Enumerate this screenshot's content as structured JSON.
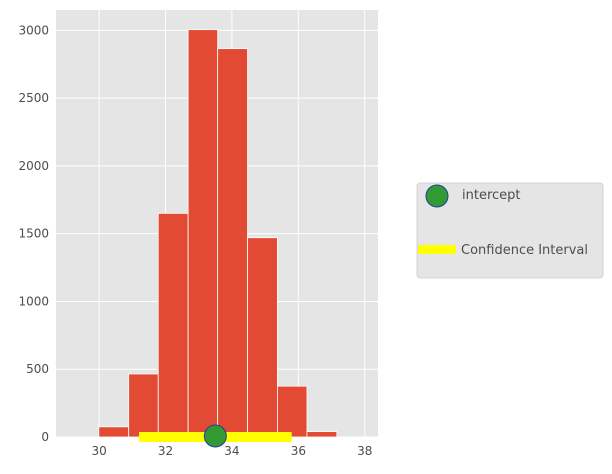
{
  "chart_data": {
    "type": "bar",
    "title": "",
    "xlabel": "",
    "ylabel": "",
    "xlim": [
      28.7,
      38.4
    ],
    "ylim": [
      0,
      3150
    ],
    "xticks": [
      30,
      32,
      34,
      36,
      38
    ],
    "yticks": [
      0,
      500,
      1000,
      1500,
      2000,
      2500,
      3000
    ],
    "grid": true,
    "background": "#e5e5e5",
    "bar_color": "#e24a33",
    "bins": [
      {
        "x0": 29.99,
        "x1": 30.89,
        "count": 75
      },
      {
        "x0": 30.89,
        "x1": 31.78,
        "count": 465
      },
      {
        "x0": 31.78,
        "x1": 32.68,
        "count": 1650
      },
      {
        "x0": 32.68,
        "x1": 33.57,
        "count": 3005
      },
      {
        "x0": 33.57,
        "x1": 34.47,
        "count": 2865
      },
      {
        "x0": 34.47,
        "x1": 35.37,
        "count": 1470
      },
      {
        "x0": 35.37,
        "x1": 36.26,
        "count": 375
      },
      {
        "x0": 36.26,
        "x1": 37.16,
        "count": 40
      }
    ],
    "intercept": {
      "name": "intercept",
      "x": 33.5,
      "y": 0,
      "color": "#339933",
      "edge_color": "#1f3fa0"
    },
    "confidence_interval": {
      "name": "Confidence Interval",
      "low": 31.2,
      "high": 35.8,
      "y": 0,
      "color": "#ffff00"
    },
    "legend": {
      "placement": "right",
      "entries": [
        "intercept",
        "Confidence Interval"
      ]
    }
  }
}
